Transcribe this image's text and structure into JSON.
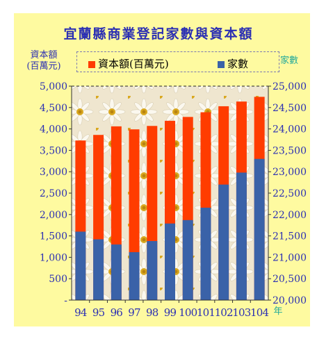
{
  "colors": {
    "panel_bg": "#fefaa0",
    "title": "#2b2fb3",
    "capital": "#ff3c00",
    "households": "#3a62a8",
    "axis_text": "#2b2fb3",
    "right_axis_text": "#21a99a"
  },
  "chart_data": {
    "type": "bar",
    "title": "宜蘭縣商業登記家數與資本額",
    "left_axis_title": [
      "資本額",
      "(百萬元)"
    ],
    "right_axis_title": "家數",
    "x_unit": "年",
    "categories": [
      "94",
      "95",
      "96",
      "97",
      "98",
      "99",
      "100",
      "101",
      "102",
      "103",
      "104"
    ],
    "series": [
      {
        "name": "資本額(百萬元)",
        "axis": "left",
        "values": [
          3730,
          3860,
          4060,
          3990,
          4070,
          4190,
          4280,
          4390,
          4530,
          4640,
          4750
        ]
      },
      {
        "name": "家數",
        "axis": "right",
        "values": [
          21600,
          21420,
          21300,
          21120,
          21380,
          21790,
          21870,
          22160,
          22700,
          22980,
          23300
        ]
      }
    ],
    "left_axis": {
      "ylim": [
        0,
        5000
      ],
      "ticks": [
        "-",
        "500",
        "1,000",
        "1,500",
        "2,000",
        "2,500",
        "3,000",
        "3,500",
        "4,000",
        "4,500",
        "5,000"
      ]
    },
    "right_axis": {
      "ylim": [
        20000,
        25000
      ],
      "ticks": [
        "20,000",
        "20,500",
        "21,000",
        "21,500",
        "22,000",
        "22,500",
        "23,000",
        "23,500",
        "24,000",
        "24,500",
        "25,000"
      ]
    },
    "plot_background": "daisy-photo",
    "legend_placement": "top"
  }
}
